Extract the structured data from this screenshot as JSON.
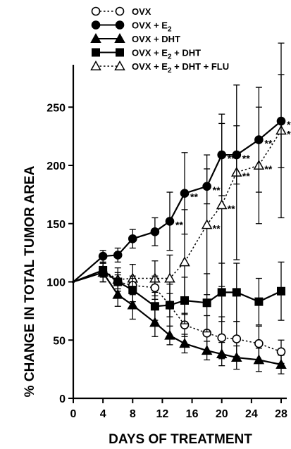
{
  "chart_data": {
    "type": "line",
    "title": "",
    "xlabel": "DAYS OF TREATMENT",
    "ylabel": "% CHANGE IN TOTAL TUMOR AREA",
    "x_ticks": [
      "0",
      "4",
      "8",
      "12",
      "16",
      "20",
      "24",
      "28"
    ],
    "y_ticks": [
      "0",
      "50",
      "100",
      "150",
      "200",
      "250"
    ],
    "xlim": [
      0,
      28
    ],
    "ylim": [
      0,
      270
    ],
    "grid": false,
    "legend_position": "top",
    "legend": [
      {
        "label": "OVX",
        "marker": "open-circle",
        "line": "dotted"
      },
      {
        "label": "OVX + E",
        "sub": "2",
        "rest": "",
        "marker": "filled-circle",
        "line": "solid"
      },
      {
        "label": "OVX + DHT",
        "marker": "filled-triangle",
        "line": "solid"
      },
      {
        "label": "OVX + E",
        "sub": "2",
        "rest": " + DHT",
        "marker": "filled-square",
        "line": "solid"
      },
      {
        "label": "OVX + E",
        "sub": "2",
        "rest": " + DHT + FLU",
        "marker": "open-triangle",
        "line": "dotted"
      }
    ],
    "x": [
      0,
      4,
      6,
      8,
      11,
      13,
      15,
      18,
      20,
      22,
      25,
      28
    ],
    "series": [
      {
        "name": "OVX",
        "marker": "open-circle",
        "line": "dotted",
        "x": [
          0,
          4,
          6,
          8,
          11,
          13,
          15,
          18,
          20,
          22,
          25,
          28
        ],
        "values": [
          100,
          108,
          100,
          97,
          95,
          80,
          63,
          56,
          52,
          51,
          47,
          40
        ],
        "errors": [
          0,
          8,
          6,
          8,
          10,
          10,
          10,
          15,
          18,
          15,
          15,
          10
        ]
      },
      {
        "name": "OVX + E2",
        "marker": "filled-circle",
        "line": "solid",
        "x": [
          0,
          4,
          6,
          8,
          11,
          13,
          15,
          18,
          20,
          22,
          25,
          28
        ],
        "values": [
          100,
          122,
          123,
          137,
          143,
          152,
          176,
          182,
          209,
          209,
          222,
          238
        ],
        "errors": [
          0,
          5,
          6,
          8,
          12,
          25,
          35,
          15,
          35,
          25,
          45,
          40
        ]
      },
      {
        "name": "OVX + DHT",
        "marker": "filled-triangle",
        "line": "solid",
        "x": [
          0,
          4,
          6,
          8,
          11,
          13,
          15,
          18,
          20,
          22,
          25,
          28
        ],
        "values": [
          100,
          108,
          89,
          80,
          65,
          54,
          47,
          41,
          38,
          35,
          33,
          29
        ],
        "errors": [
          0,
          8,
          10,
          12,
          12,
          8,
          8,
          8,
          10,
          10,
          10,
          8
        ]
      },
      {
        "name": "OVX + E2 + DHT",
        "marker": "filled-square",
        "line": "solid",
        "x": [
          0,
          4,
          6,
          8,
          11,
          13,
          15,
          18,
          20,
          22,
          25,
          28
        ],
        "values": [
          100,
          110,
          100,
          93,
          79,
          80,
          84,
          82,
          91,
          91,
          83,
          92
        ],
        "errors": [
          0,
          6,
          8,
          10,
          12,
          18,
          20,
          25,
          25,
          25,
          20,
          25
        ]
      },
      {
        "name": "OVX + E2 + DHT + FLU",
        "marker": "open-triangle",
        "line": "dotted",
        "x": [
          0,
          4,
          6,
          8,
          11,
          13,
          15,
          18,
          20,
          22,
          25,
          28
        ],
        "values": [
          100,
          110,
          102,
          103,
          103,
          103,
          117,
          149,
          166,
          194,
          200,
          230
        ],
        "errors": [
          0,
          10,
          10,
          12,
          15,
          20,
          45,
          60,
          70,
          75,
          50,
          75
        ]
      }
    ],
    "annotations": [
      {
        "text": "**",
        "x": 13,
        "y": 152
      },
      {
        "text": "**",
        "x": 15,
        "y": 176
      },
      {
        "text": "**",
        "x": 18,
        "y": 149
      },
      {
        "text": "**",
        "x": 18,
        "y": 182
      },
      {
        "text": "**",
        "x": 20,
        "y": 166
      },
      {
        "text": "**",
        "x": 20,
        "y": 209
      },
      {
        "text": "**",
        "x": 22,
        "y": 194
      },
      {
        "text": "**",
        "x": 22,
        "y": 209
      },
      {
        "text": "**",
        "x": 25,
        "y": 200
      },
      {
        "text": "**",
        "x": 25,
        "y": 222
      },
      {
        "text": "**",
        "x": 28,
        "y": 238
      },
      {
        "text": "**",
        "x": 28,
        "y": 230
      }
    ]
  }
}
